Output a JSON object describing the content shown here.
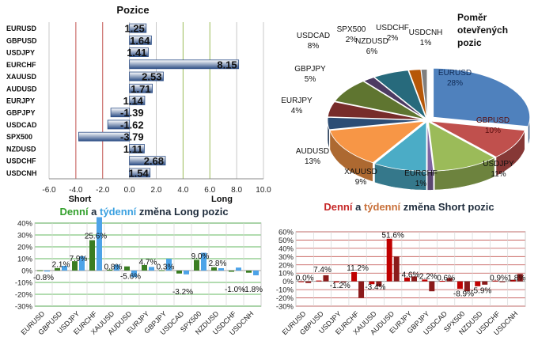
{
  "chart_data": [
    {
      "type": "bar",
      "orientation": "horizontal",
      "title": "Pozice",
      "categories": [
        "EURUSD",
        "GBPUSD",
        "USDJPY",
        "EURCHF",
        "XAUUSD",
        "AUDUSD",
        "EURJPY",
        "GBPJPY",
        "USDCAD",
        "SPX500",
        "NZDUSD",
        "USDCHF",
        "USDCNH"
      ],
      "values": [
        1.25,
        1.64,
        1.41,
        8.15,
        2.53,
        1.71,
        1.14,
        -1.39,
        -1.62,
        -3.79,
        1.11,
        2.68,
        1.54
      ],
      "value_labels": [
        "1.25",
        "1.64",
        "1.41",
        "8.15",
        "2.53",
        "1.71",
        "1.14",
        "-1.39",
        "-1.62",
        "-3.79",
        "1.11",
        "2.68",
        "1.54"
      ],
      "xlim": [
        -6,
        10
      ],
      "xticks": [
        -6,
        -4,
        -2,
        0,
        2,
        4,
        6,
        8,
        10
      ],
      "xtick_labels": [
        "-6.0",
        "-4.0",
        "-2.0",
        "0.0",
        "2.0",
        "4.0",
        "6.0",
        "8.0",
        "10.0"
      ],
      "side_labels": {
        "short": "Short",
        "long": "Long"
      },
      "colors": {
        "bar": "#8fa9cf",
        "bar_dark": "#2e4f86",
        "short_lines": "#c0504d",
        "long_lines": "#9bbb59"
      }
    },
    {
      "type": "pie",
      "title": "Poměr otevřených pozic",
      "title_lines": [
        "Poměr",
        "otevřených",
        "pozic"
      ],
      "labels": [
        "EURUSD",
        "GBPUSD",
        "USDJPY",
        "EURCHF",
        "XAUUSD",
        "AUDUSD",
        "EURJPY",
        "GBPJPY",
        "USDCAD",
        "SPX500",
        "NZDUSD",
        "USDCHF",
        "USDCNH"
      ],
      "values": [
        28,
        10,
        11,
        1,
        9,
        13,
        4,
        5,
        8,
        2,
        6,
        2,
        1
      ],
      "value_labels": [
        "28%",
        "10%",
        "11%",
        "1%",
        "9%",
        "13%",
        "4%",
        "5%",
        "8%",
        "2%",
        "6%",
        "2%",
        "1%"
      ],
      "colors": [
        "#4f81bd",
        "#c0504d",
        "#9bbb59",
        "#8064a2",
        "#4bacc6",
        "#f79646",
        "#2c4d75",
        "#772c2a",
        "#5f7530",
        "#4d3b62",
        "#276a7c",
        "#b65708",
        "#7f7f7f"
      ]
    },
    {
      "type": "bar",
      "title": "Denní a týdenní změna Long pozic",
      "title_parts": [
        {
          "text": "Denní",
          "color": "#33a02c"
        },
        {
          "text": " a ",
          "color": "#1f2d3d"
        },
        {
          "text": "týdenní",
          "color": "#3aa0e0"
        },
        {
          "text": " změna Long pozic",
          "color": "#1f2d3d"
        }
      ],
      "categories": [
        "EURUSD",
        "GBPUSD",
        "USDJPY",
        "EURCHF",
        "XAUUSD",
        "AUDUSD",
        "EURJPY",
        "GBPJPY",
        "USDCAD",
        "SPX500",
        "NZDUSD",
        "USDCHF",
        "USDCNH"
      ],
      "series": [
        {
          "name": "Denní",
          "values": [
            0.2,
            2.1,
            7.9,
            25.6,
            0.8,
            3.5,
            4.7,
            0.3,
            -2.5,
            9.0,
            2.8,
            -1.0,
            -1.8
          ],
          "color": "#3a7d22"
        },
        {
          "name": "týdenní",
          "values": [
            -0.8,
            4.0,
            12.0,
            45.0,
            5.0,
            -5.6,
            3.0,
            10.0,
            -3.2,
            15.0,
            2.0,
            2.5,
            -4.0
          ],
          "color": "#4da3e8"
        }
      ],
      "data_labels": [
        {
          "text": "-0.8%",
          "cat": 0,
          "y": -8
        },
        {
          "text": "2.1%",
          "cat": 1,
          "y": 3
        },
        {
          "text": "7.9%",
          "cat": 2,
          "y": 8
        },
        {
          "text": "25.6%",
          "cat": 3,
          "y": 27
        },
        {
          "text": "0.8%",
          "cat": 4,
          "y": 1
        },
        {
          "text": "-5.6%",
          "cat": 5,
          "y": -7
        },
        {
          "text": "4.7%",
          "cat": 6,
          "y": 5
        },
        {
          "text": "0.3%",
          "cat": 7,
          "y": 1
        },
        {
          "text": "-3.2%",
          "cat": 8,
          "y": -20
        },
        {
          "text": "9.0%",
          "cat": 9,
          "y": 10
        },
        {
          "text": "2.8%",
          "cat": 10,
          "y": 4
        },
        {
          "text": "-1.0%",
          "cat": 11,
          "y": -18
        },
        {
          "text": "-1.8%",
          "cat": 12,
          "y": -18
        }
      ],
      "ylim": [
        -30,
        40
      ],
      "yticks": [
        -30,
        -20,
        -10,
        0,
        10,
        20,
        30,
        40
      ],
      "ytick_labels": [
        "-30%",
        "-20%",
        "-10%",
        "0%",
        "10%",
        "20%",
        "30%",
        "40%"
      ],
      "grid": true,
      "grid_color": "#33a02c"
    },
    {
      "type": "bar",
      "title": "Denní a týdenní změna Short pozic",
      "title_parts": [
        {
          "text": "Denní",
          "color": "#c62828"
        },
        {
          "text": " a ",
          "color": "#1f2d3d"
        },
        {
          "text": "týdenní",
          "color": "#c8703a"
        },
        {
          "text": " změna Short pozic",
          "color": "#1f2d3d"
        }
      ],
      "categories": [
        "EURUSD",
        "GBPUSD",
        "USDJPY",
        "EURCHF",
        "XAUUSD",
        "AUDUSD",
        "EURJPY",
        "GBPJPY",
        "USDCAD",
        "SPX500",
        "NZDUSD",
        "USDCHF",
        "USDCNH"
      ],
      "series": [
        {
          "name": "Denní",
          "values": [
            0.0,
            1.0,
            -1.2,
            11.2,
            -3.4,
            51.6,
            4.6,
            2.2,
            0.6,
            -8.9,
            -5.9,
            0.9,
            1.8
          ],
          "color": "#c00000"
        },
        {
          "name": "týdenní",
          "values": [
            -2.0,
            7.4,
            -1.0,
            -20.0,
            -6.0,
            30.0,
            6.0,
            -12.0,
            4.0,
            -12.0,
            -4.0,
            -1.0,
            9.0
          ],
          "color": "#8b1a1a"
        }
      ],
      "data_labels": [
        {
          "text": "0.0%",
          "cat": 0,
          "y": 1
        },
        {
          "text": "7.4%",
          "cat": 1,
          "y": 11
        },
        {
          "text": "-1.2%",
          "cat": 2,
          "y": -8
        },
        {
          "text": "11.2%",
          "cat": 3,
          "y": 13
        },
        {
          "text": "-3.4%",
          "cat": 4,
          "y": -10
        },
        {
          "text": "51.6%",
          "cat": 5,
          "y": 53
        },
        {
          "text": "4.6%",
          "cat": 6,
          "y": 5
        },
        {
          "text": "2.2%",
          "cat": 7,
          "y": 3
        },
        {
          "text": "0.6%",
          "cat": 8,
          "y": 1
        },
        {
          "text": "-8.9%",
          "cat": 9,
          "y": -18
        },
        {
          "text": "-5.9%",
          "cat": 10,
          "y": -14
        },
        {
          "text": "0.9%",
          "cat": 11,
          "y": 1
        },
        {
          "text": "1.8%",
          "cat": 12,
          "y": 1
        }
      ],
      "ylim": [
        -30,
        60
      ],
      "yticks": [
        -30,
        -20,
        -10,
        0,
        10,
        20,
        30,
        40,
        50,
        60
      ],
      "ytick_labels": [
        "-30%",
        "-20%",
        "-10%",
        "0%",
        "10%",
        "20%",
        "30%",
        "40%",
        "50%",
        "60%"
      ],
      "grid": true,
      "grid_color": "#c0504d"
    }
  ]
}
